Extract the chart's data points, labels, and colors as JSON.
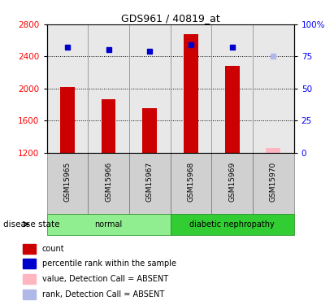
{
  "title": "GDS961 / 40819_at",
  "samples": [
    "GSM15965",
    "GSM15966",
    "GSM15967",
    "GSM15968",
    "GSM15969",
    "GSM15970"
  ],
  "bar_values": [
    2020,
    1870,
    1750,
    2680,
    2280,
    1260
  ],
  "bar_absent": [
    false,
    false,
    false,
    false,
    false,
    true
  ],
  "rank_values": [
    82,
    80,
    79,
    84,
    82,
    75
  ],
  "rank_absent": [
    false,
    false,
    false,
    false,
    false,
    true
  ],
  "ylim_left": [
    1200,
    2800
  ],
  "ylim_right": [
    0,
    100
  ],
  "yticks_left": [
    1200,
    1600,
    2000,
    2400,
    2800
  ],
  "yticks_right": [
    0,
    25,
    50,
    75,
    100
  ],
  "ytick_labels_right": [
    "0",
    "25",
    "50",
    "75",
    "100%"
  ],
  "groups": [
    {
      "label": "normal",
      "samples": [
        "GSM15965",
        "GSM15966",
        "GSM15967"
      ],
      "color": "#90ee90"
    },
    {
      "label": "diabetic nephropathy",
      "samples": [
        "GSM15968",
        "GSM15969",
        "GSM15970"
      ],
      "color": "#32cd32"
    }
  ],
  "bar_color": "#cc0000",
  "bar_absent_color": "#ffb6c1",
  "dot_color": "#0000cc",
  "dot_absent_color": "#b0b8e8",
  "grid_color": "#000000",
  "plot_bg": "#f0f0f0",
  "disease_state_label": "disease state",
  "legend_items": [
    {
      "color": "#cc0000",
      "label": "count"
    },
    {
      "color": "#0000cc",
      "label": "percentile rank within the sample"
    },
    {
      "color": "#ffb6c1",
      "label": "value, Detection Call = ABSENT"
    },
    {
      "color": "#b0b8e8",
      "label": "rank, Detection Call = ABSENT"
    }
  ]
}
